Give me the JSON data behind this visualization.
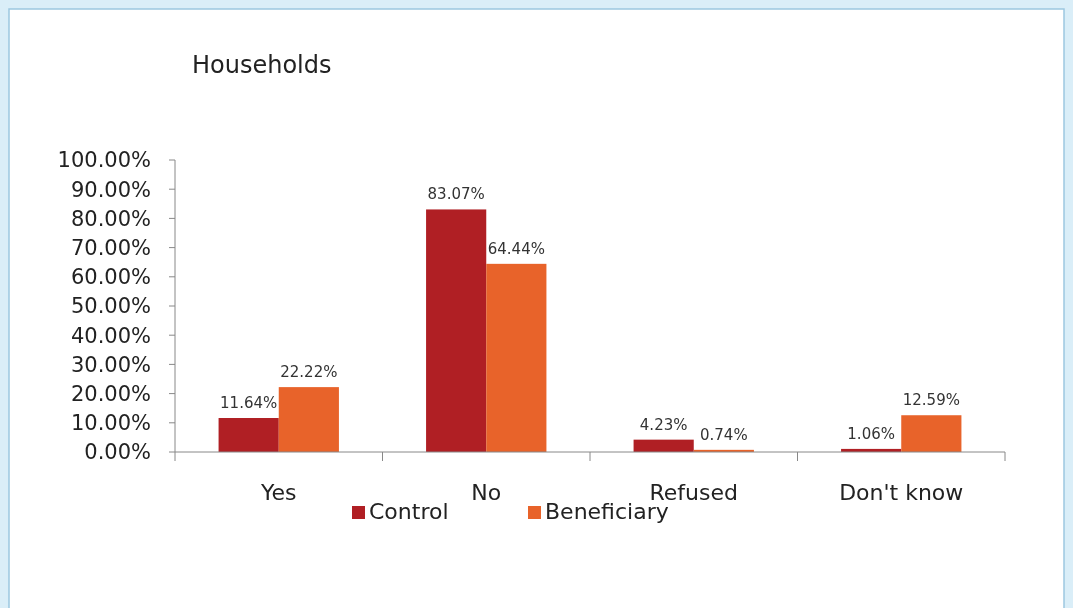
{
  "chart_data": {
    "type": "bar",
    "title": "Households",
    "categories": [
      "Yes",
      "No",
      "Refused",
      "Don't know"
    ],
    "series": [
      {
        "name": "Control",
        "color": "#b01f24",
        "values": [
          11.64,
          83.07,
          4.23,
          1.06
        ],
        "value_labels": [
          "11.64%",
          "83.07%",
          "4.23%",
          "1.06%"
        ]
      },
      {
        "name": "Beneficiary",
        "color": "#e8632a",
        "values": [
          22.22,
          64.44,
          0.74,
          12.59
        ],
        "value_labels": [
          "22.22%",
          "64.44%",
          "0.74%",
          "12.59%"
        ]
      }
    ],
    "ylim": [
      0,
      100
    ],
    "yticks": [
      {
        "value": 0,
        "label": "0.00%"
      },
      {
        "value": 10,
        "label": "10.00%"
      },
      {
        "value": 20,
        "label": "20.00%"
      },
      {
        "value": 30,
        "label": "30.00%"
      },
      {
        "value": 40,
        "label": "40.00%"
      },
      {
        "value": 50,
        "label": "50.00%"
      },
      {
        "value": 60,
        "label": "60.00%"
      },
      {
        "value": 70,
        "label": "70.00%"
      },
      {
        "value": 80,
        "label": "80.00%"
      },
      {
        "value": 90,
        "label": "90.00%"
      },
      {
        "value": 100,
        "label": "100.00%"
      }
    ],
    "grid": false,
    "legend": "bottom"
  }
}
